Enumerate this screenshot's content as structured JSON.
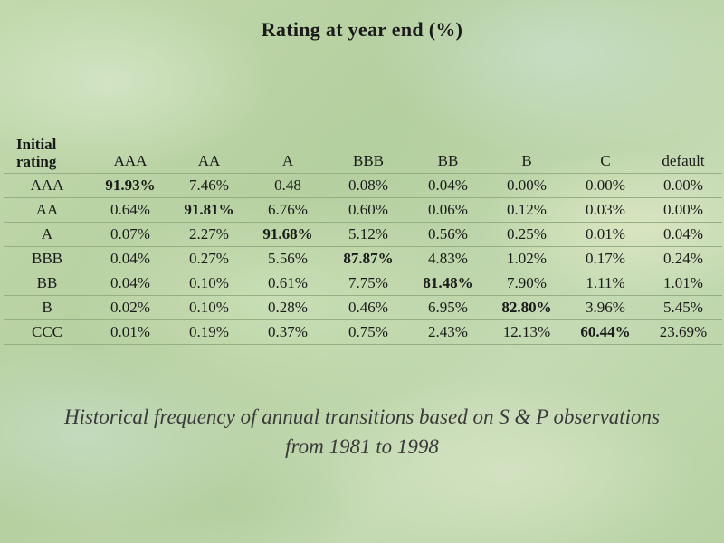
{
  "title": "Rating at year end (%)",
  "table": {
    "corner_line1": "Initial",
    "corner_line2": "rating",
    "columns": [
      "AAA",
      "AA",
      "A",
      "BBB",
      "BB",
      "B",
      "C",
      "default"
    ],
    "rows": [
      {
        "label": "AAA",
        "cells": [
          "91.93%",
          "7.46%",
          "0.48",
          "0.08%",
          "0.04%",
          "0.00%",
          "0.00%",
          "0.00%"
        ],
        "diag": 0
      },
      {
        "label": "AA",
        "cells": [
          "0.64%",
          "91.81%",
          "6.76%",
          "0.60%",
          "0.06%",
          "0.12%",
          "0.03%",
          "0.00%"
        ],
        "diag": 1
      },
      {
        "label": "A",
        "cells": [
          "0.07%",
          "2.27%",
          "91.68%",
          "5.12%",
          "0.56%",
          "0.25%",
          "0.01%",
          "0.04%"
        ],
        "diag": 2
      },
      {
        "label": "BBB",
        "cells": [
          "0.04%",
          "0.27%",
          "5.56%",
          "87.87%",
          "4.83%",
          "1.02%",
          "0.17%",
          "0.24%"
        ],
        "diag": 3
      },
      {
        "label": "BB",
        "cells": [
          "0.04%",
          "0.10%",
          "0.61%",
          "7.75%",
          "81.48%",
          "7.90%",
          "1.11%",
          "1.01%"
        ],
        "diag": 4
      },
      {
        "label": "B",
        "cells": [
          "0.02%",
          "0.10%",
          "0.28%",
          "0.46%",
          "6.95%",
          "82.80%",
          "3.96%",
          "5.45%"
        ],
        "diag": 5
      },
      {
        "label": "CCC",
        "cells": [
          "0.01%",
          "0.19%",
          "0.37%",
          "0.75%",
          "2.43%",
          "12.13%",
          "60.44%",
          "23.69%"
        ],
        "diag": 6
      }
    ]
  },
  "caption_line1": "Historical frequency of annual transitions based on S & P observations",
  "caption_line2": "from 1981 to 1998"
}
